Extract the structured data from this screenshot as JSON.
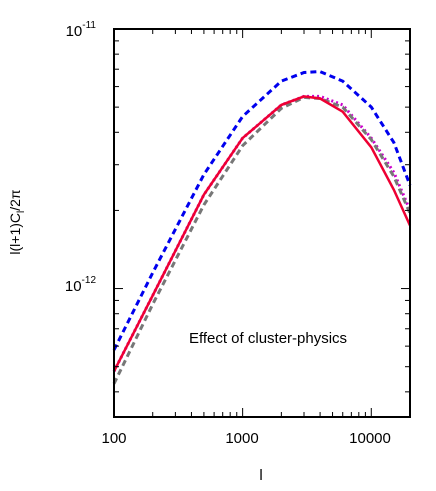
{
  "chart_data": {
    "type": "line",
    "xlabel": "l",
    "ylabel": "l(l+1)C_l/2π",
    "ylabel_display": "l(l+1)C",
    "ylabel_sub": "l",
    "ylabel_tail": "/2π",
    "xscale": "log",
    "yscale": "log",
    "xlim": [
      100,
      20000
    ],
    "ylim": [
      3.2e-13,
      1e-11
    ],
    "grid": false,
    "x_ticks": [
      {
        "value": 100,
        "label": "100"
      },
      {
        "value": 1000,
        "label": "1000"
      },
      {
        "value": 10000,
        "label": "10000"
      }
    ],
    "y_ticks": [
      {
        "value": 1e-11,
        "base": "10",
        "exp": "-11"
      },
      {
        "value": 1e-12,
        "base": "10",
        "exp": "-12"
      }
    ],
    "annotation": "Effect of cluster-physics",
    "x": [
      100,
      200,
      500,
      1000,
      2000,
      3000,
      4000,
      6000,
      10000,
      15000,
      20000
    ],
    "series": [
      {
        "color": "#0000ee",
        "dash": "dash",
        "values": [
          5.8e-13,
          1.15e-12,
          2.75e-12,
          4.6e-12,
          6.3e-12,
          6.8e-12,
          6.85e-12,
          6.3e-12,
          5e-12,
          3.65e-12,
          2.5e-12
        ]
      },
      {
        "color": "#cc00cc",
        "dash": "dot",
        "values": [
          4.8e-13,
          9.4e-13,
          2.3e-12,
          3.8e-12,
          5.1e-12,
          5.5e-12,
          5.5e-12,
          5.1e-12,
          3.8e-12,
          2.8e-12,
          2e-12
        ]
      },
      {
        "color": "#777777",
        "dash": "dash",
        "values": [
          4.3e-13,
          8.7e-13,
          2.1e-12,
          3.55e-12,
          4.95e-12,
          5.45e-12,
          5.4e-12,
          5e-12,
          3.75e-12,
          2.7e-12,
          1.95e-12
        ]
      },
      {
        "color": "#ee0033",
        "dash": "solid",
        "values": [
          4.8e-13,
          9.4e-13,
          2.3e-12,
          3.8e-12,
          5.1e-12,
          5.5e-12,
          5.4e-12,
          4.8e-12,
          3.5e-12,
          2.4e-12,
          1.75e-12
        ]
      }
    ]
  }
}
